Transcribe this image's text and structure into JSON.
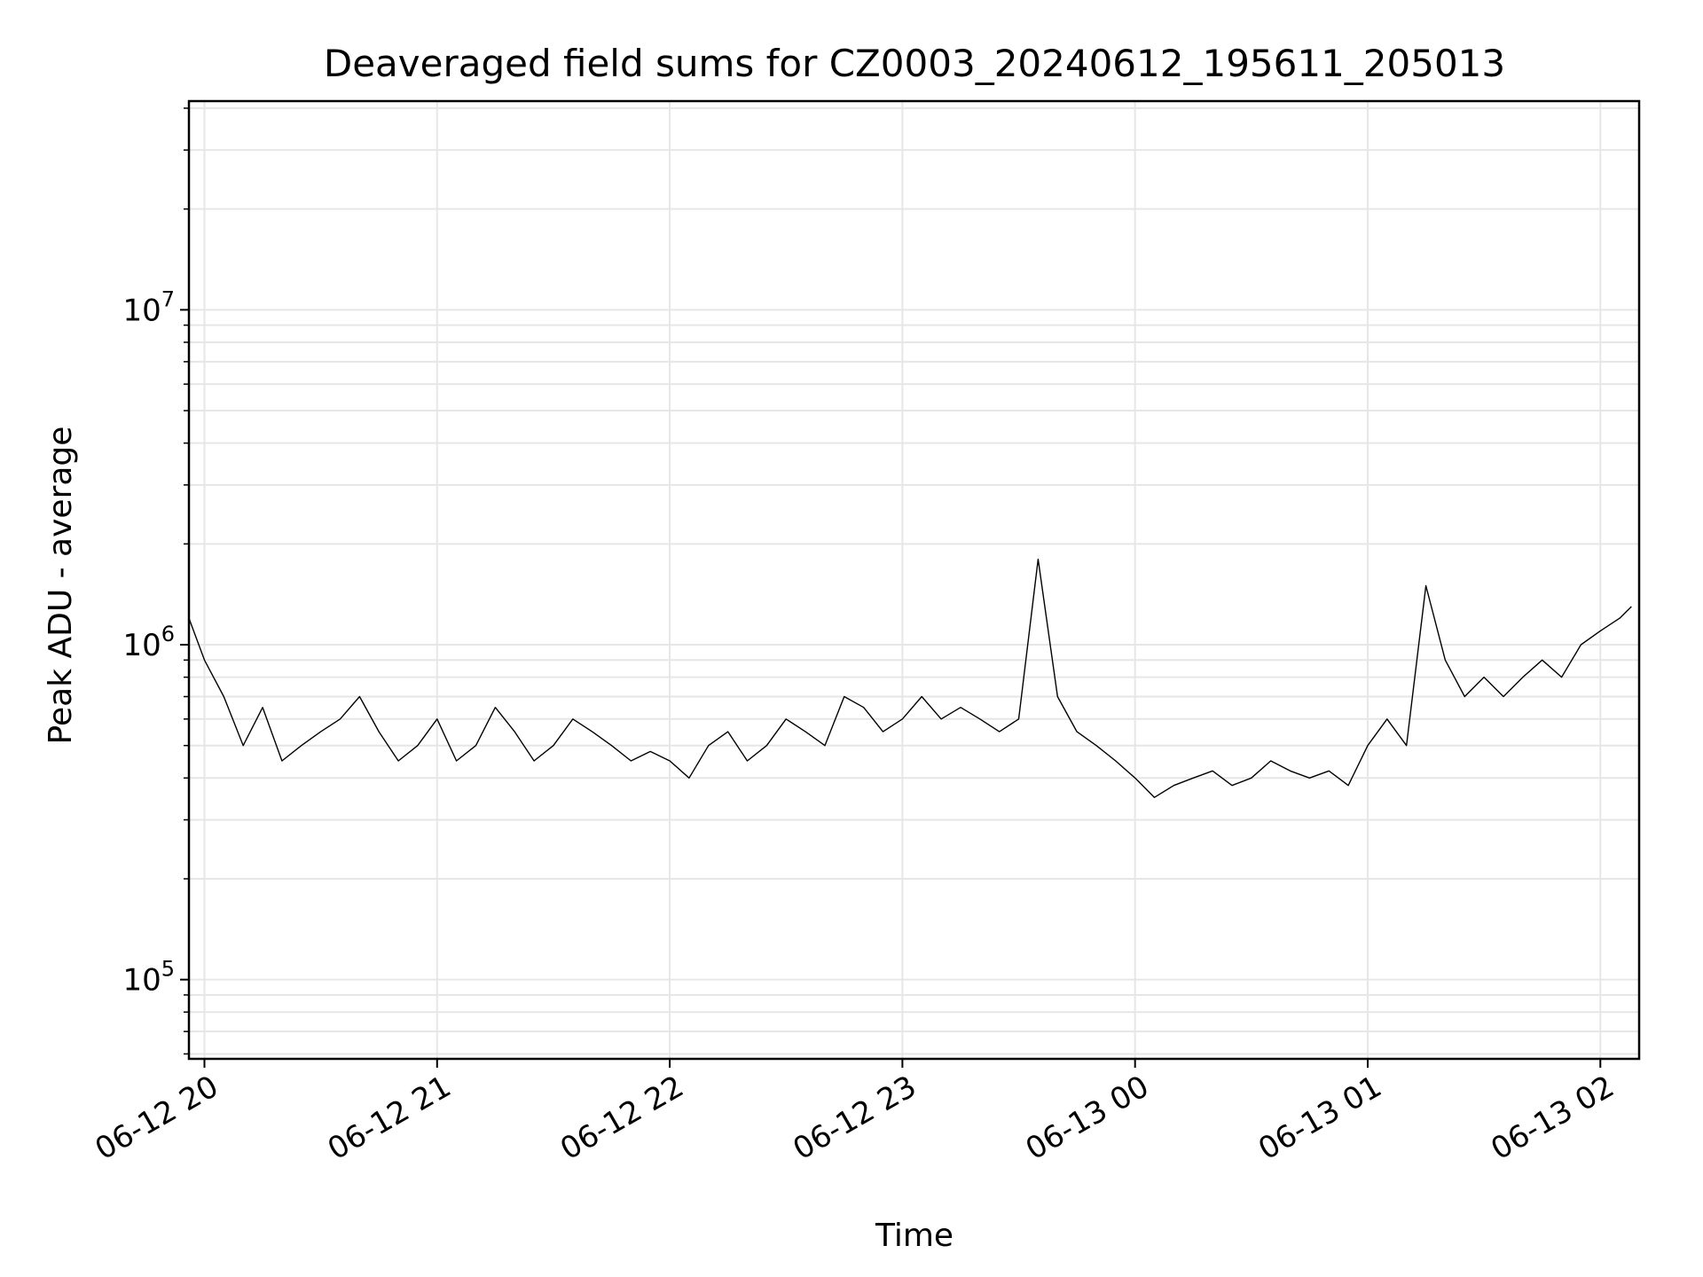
{
  "chart_data": {
    "type": "line",
    "title": "Deaveraged field sums for CZ0003_20240612_195611_205013",
    "xlabel": "Time",
    "ylabel": "Peak ADU - average",
    "y_scale": "log",
    "xlim": [
      "2024-06-12 19:56",
      "2024-06-13 02:10"
    ],
    "ylim": [
      58000,
      42000000
    ],
    "grid": true,
    "line_color": "#000000",
    "grid_color": "#e6e6e6",
    "x_ticks": [
      {
        "value": "2024-06-12 20:00",
        "label": "06-12 20"
      },
      {
        "value": "2024-06-12 21:00",
        "label": "06-12 21"
      },
      {
        "value": "2024-06-12 22:00",
        "label": "06-12 22"
      },
      {
        "value": "2024-06-12 23:00",
        "label": "06-12 23"
      },
      {
        "value": "2024-06-13 00:00",
        "label": "06-13 00"
      },
      {
        "value": "2024-06-13 01:00",
        "label": "06-13 01"
      },
      {
        "value": "2024-06-13 02:00",
        "label": "06-13 02"
      }
    ],
    "y_ticks": [
      {
        "value": 100000,
        "base": "10",
        "exp": "5"
      },
      {
        "value": 1000000,
        "base": "10",
        "exp": "6"
      },
      {
        "value": 10000000,
        "base": "10",
        "exp": "7"
      }
    ],
    "series": [
      {
        "x": [
          "2024-06-12 19:56",
          "2024-06-12 20:00",
          "2024-06-12 20:05",
          "2024-06-12 20:10",
          "2024-06-12 20:15",
          "2024-06-12 20:20",
          "2024-06-12 20:25",
          "2024-06-12 20:30",
          "2024-06-12 20:35",
          "2024-06-12 20:40",
          "2024-06-12 20:45",
          "2024-06-12 20:50",
          "2024-06-12 20:55",
          "2024-06-12 21:00",
          "2024-06-12 21:05",
          "2024-06-12 21:10",
          "2024-06-12 21:15",
          "2024-06-12 21:20",
          "2024-06-12 21:25",
          "2024-06-12 21:30",
          "2024-06-12 21:35",
          "2024-06-12 21:40",
          "2024-06-12 21:45",
          "2024-06-12 21:50",
          "2024-06-12 21:55",
          "2024-06-12 22:00",
          "2024-06-12 22:05",
          "2024-06-12 22:10",
          "2024-06-12 22:15",
          "2024-06-12 22:20",
          "2024-06-12 22:25",
          "2024-06-12 22:30",
          "2024-06-12 22:35",
          "2024-06-12 22:40",
          "2024-06-12 22:45",
          "2024-06-12 22:50",
          "2024-06-12 22:55",
          "2024-06-12 23:00",
          "2024-06-12 23:05",
          "2024-06-12 23:10",
          "2024-06-12 23:15",
          "2024-06-12 23:20",
          "2024-06-12 23:25",
          "2024-06-12 23:30",
          "2024-06-12 23:35",
          "2024-06-12 23:40",
          "2024-06-12 23:45",
          "2024-06-12 23:50",
          "2024-06-12 23:55",
          "2024-06-13 00:00",
          "2024-06-13 00:05",
          "2024-06-13 00:10",
          "2024-06-13 00:15",
          "2024-06-13 00:20",
          "2024-06-13 00:25",
          "2024-06-13 00:30",
          "2024-06-13 00:35",
          "2024-06-13 00:40",
          "2024-06-13 00:45",
          "2024-06-13 00:50",
          "2024-06-13 00:55",
          "2024-06-13 01:00",
          "2024-06-13 01:05",
          "2024-06-13 01:10",
          "2024-06-13 01:15",
          "2024-06-13 01:20",
          "2024-06-13 01:25",
          "2024-06-13 01:30",
          "2024-06-13 01:35",
          "2024-06-13 01:40",
          "2024-06-13 01:45",
          "2024-06-13 01:50",
          "2024-06-13 01:55",
          "2024-06-13 02:00",
          "2024-06-13 02:05",
          "2024-06-13 02:08"
        ],
        "y": [
          1200000,
          900000,
          700000,
          500000,
          650000,
          450000,
          500000,
          550000,
          600000,
          700000,
          550000,
          450000,
          500000,
          600000,
          450000,
          500000,
          650000,
          550000,
          450000,
          500000,
          600000,
          550000,
          500000,
          450000,
          480000,
          450000,
          400000,
          500000,
          550000,
          450000,
          500000,
          600000,
          550000,
          500000,
          700000,
          650000,
          550000,
          600000,
          700000,
          600000,
          650000,
          600000,
          550000,
          600000,
          1800000,
          700000,
          550000,
          500000,
          450000,
          400000,
          350000,
          380000,
          400000,
          420000,
          380000,
          400000,
          450000,
          420000,
          400000,
          420000,
          380000,
          500000,
          600000,
          500000,
          1500000,
          900000,
          700000,
          800000,
          700000,
          800000,
          900000,
          800000,
          1000000,
          1100000,
          1200000,
          1300000
        ]
      }
    ]
  }
}
